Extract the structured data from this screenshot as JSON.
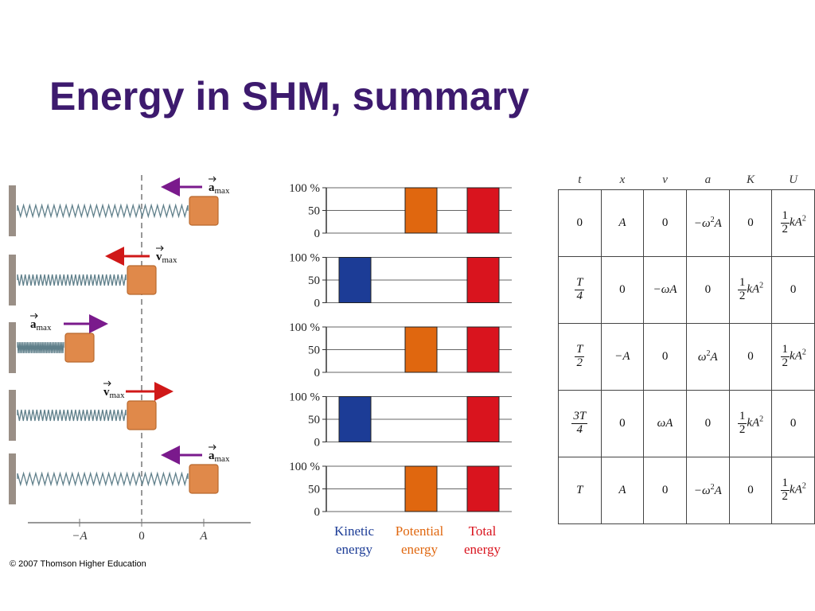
{
  "title": "Energy in SHM, summary",
  "copyright": "© 2007 Thomson Higher Education",
  "colors": {
    "title": "#3d1a6e",
    "kinetic": "#1c3c96",
    "potential": "#e0670f",
    "total": "#d9141e",
    "accel_arrow": "#7a1a8c",
    "vel_arrow": "#d01818",
    "block": "#e0894a"
  },
  "spring_diagram": {
    "axis_labels": [
      "−A",
      "0",
      "A"
    ],
    "labels": {
      "a_max": {
        "symbol": "a",
        "sub": "max"
      },
      "v_max": {
        "symbol": "v",
        "sub": "max"
      }
    },
    "frames": [
      {
        "position": "A",
        "arrow": "a_max",
        "arrow_direction": "left"
      },
      {
        "position": "0",
        "arrow": "v_max",
        "arrow_direction": "left"
      },
      {
        "position": "−A",
        "arrow": "a_max",
        "arrow_direction": "right"
      },
      {
        "position": "0",
        "arrow": "v_max",
        "arrow_direction": "right"
      },
      {
        "position": "A",
        "arrow": "a_max",
        "arrow_direction": "left"
      }
    ]
  },
  "chart_data": {
    "type": "bar",
    "categories": [
      "Kinetic energy",
      "Potential energy",
      "Total energy"
    ],
    "y_tick_labels": [
      "100 %",
      "50",
      "0"
    ],
    "ylim": [
      0,
      100
    ],
    "panels": [
      {
        "values": [
          0,
          100,
          100
        ]
      },
      {
        "values": [
          100,
          0,
          100
        ]
      },
      {
        "values": [
          0,
          100,
          100
        ]
      },
      {
        "values": [
          100,
          0,
          100
        ]
      },
      {
        "values": [
          0,
          100,
          100
        ]
      }
    ],
    "legend": [
      {
        "line1": "Kinetic",
        "line2": "energy",
        "color": "#1c3c96"
      },
      {
        "line1": "Potential",
        "line2": "energy",
        "color": "#e0670f"
      },
      {
        "line1": "Total",
        "line2": "energy",
        "color": "#d9141e"
      }
    ]
  },
  "table": {
    "headers": [
      "t",
      "x",
      "v",
      "a",
      "K",
      "U"
    ],
    "rows": [
      {
        "t": "0",
        "x": "A",
        "v": "0",
        "a": "−ω²A",
        "K": "0",
        "U": "½kA²"
      },
      {
        "t": "T/4",
        "x": "0",
        "v": "−ωA",
        "a": "0",
        "K": "½kA²",
        "U": "0"
      },
      {
        "t": "T/2",
        "x": "−A",
        "v": "0",
        "a": "ω²A",
        "K": "0",
        "U": "½kA²"
      },
      {
        "t": "3T/4",
        "x": "0",
        "v": "ωA",
        "a": "0",
        "K": "½kA²",
        "U": "0"
      },
      {
        "t": "T",
        "x": "A",
        "v": "0",
        "a": "−ω²A",
        "K": "0",
        "U": "½kA²"
      }
    ]
  }
}
